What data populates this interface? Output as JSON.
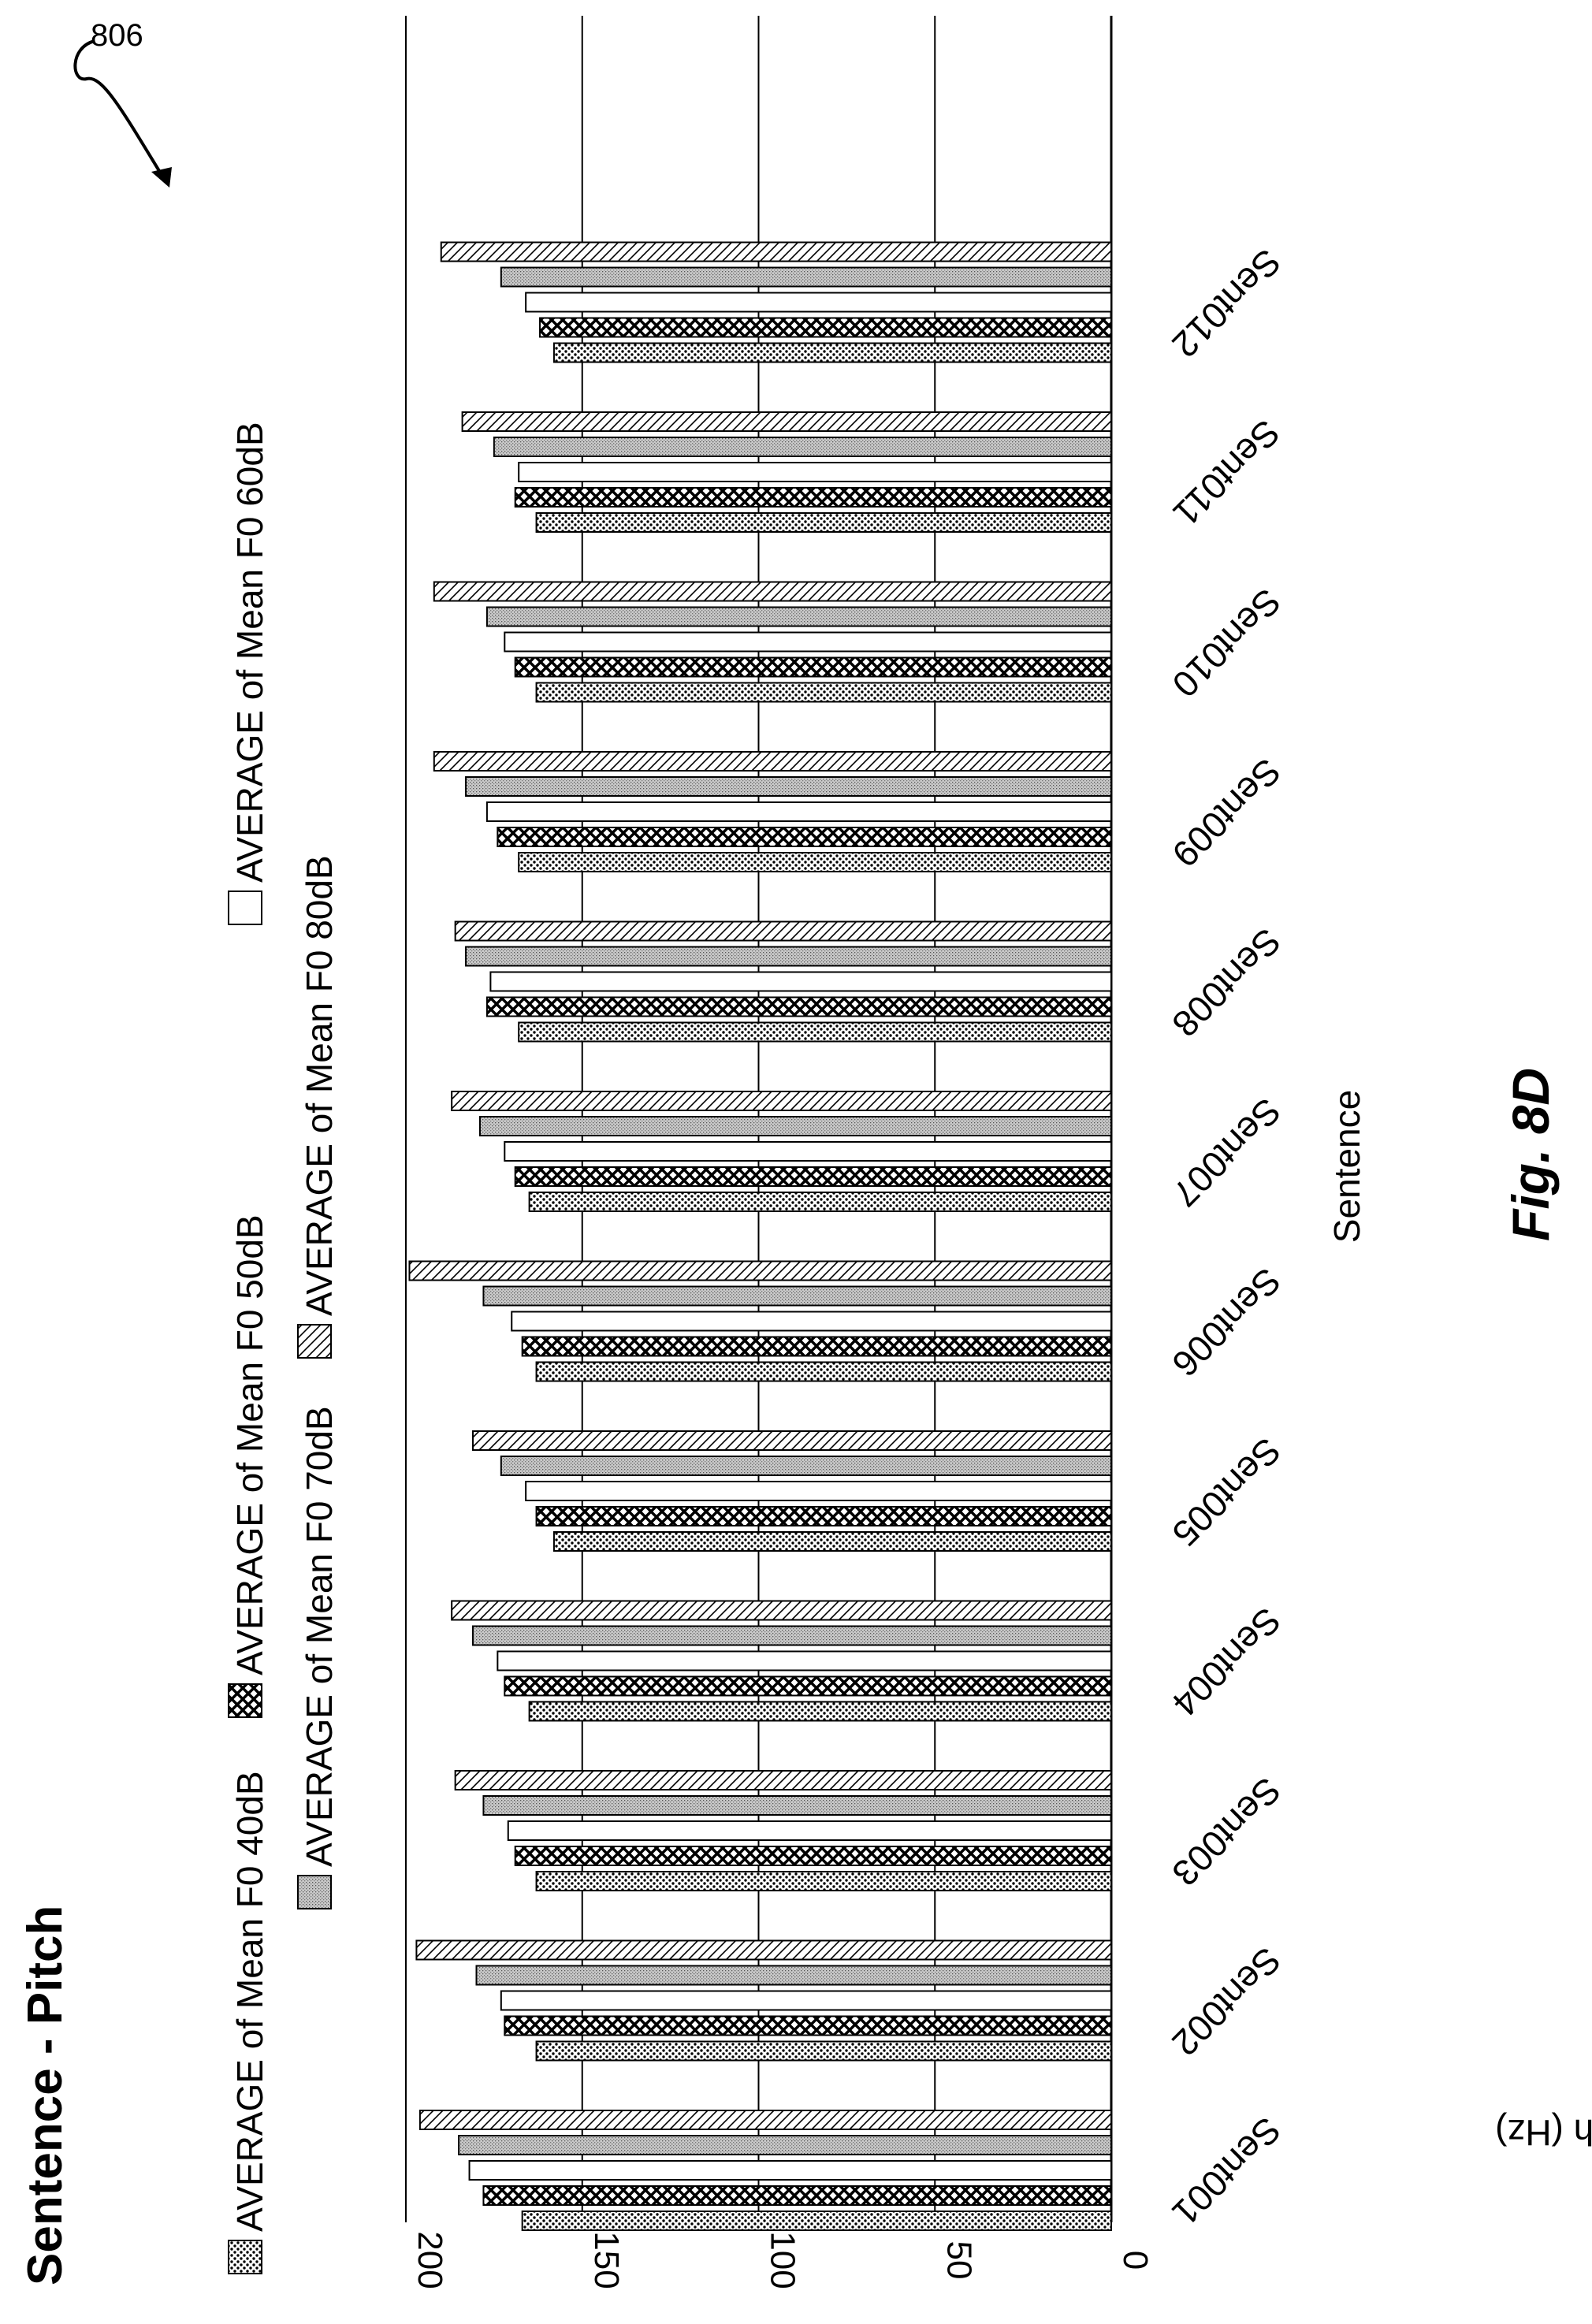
{
  "figure": {
    "reference_numeral": "806",
    "caption": "Fig. 8D"
  },
  "chart_data": {
    "type": "bar",
    "title": "Sentence - Pitch",
    "xlabel": "Sentence",
    "ylabel": "Pitch (Hz)",
    "ylim": [
      0,
      200
    ],
    "yticks": [
      0,
      50,
      100,
      150,
      200
    ],
    "grid": true,
    "orientation": "figure rotated 90° clockwise",
    "legend_position": "top",
    "categories": [
      "Sent001",
      "Sent002",
      "Sent003",
      "Sent004",
      "Sent005",
      "Sent006",
      "Sent007",
      "Sent008",
      "Sent009",
      "Sent010",
      "Sent011",
      "Sent012"
    ],
    "series": [
      {
        "name": "AVERAGE of Mean F0 40dB",
        "pattern": "dots",
        "values": [
          167,
          163,
          163,
          165,
          158,
          163,
          165,
          168,
          168,
          163,
          163,
          158
        ]
      },
      {
        "name": "AVERAGE of Mean F0 50dB",
        "pattern": "crosshatch",
        "values": [
          178,
          172,
          169,
          172,
          163,
          167,
          169,
          177,
          174,
          169,
          169,
          162
        ]
      },
      {
        "name": "AVERAGE of Mean F0 60dB",
        "pattern": "blank",
        "values": [
          182,
          173,
          171,
          174,
          166,
          170,
          172,
          176,
          177,
          172,
          168,
          166
        ]
      },
      {
        "name": "AVERAGE of Mean F0 70dB",
        "pattern": "stipple",
        "values": [
          185,
          180,
          178,
          181,
          173,
          178,
          179,
          183,
          183,
          177,
          175,
          173
        ]
      },
      {
        "name": "AVERAGE of Mean F0 80dB",
        "pattern": "diagonal",
        "values": [
          196,
          197,
          186,
          187,
          181,
          199,
          187,
          186,
          192,
          192,
          184,
          190
        ]
      }
    ]
  }
}
